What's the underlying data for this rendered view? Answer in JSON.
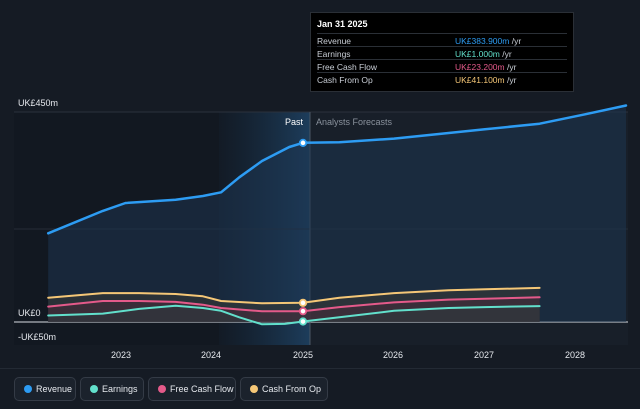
{
  "chart_data": {
    "type": "line",
    "x_ticks": [
      "2023",
      "2024",
      "2025",
      "2026",
      "2027",
      "2028"
    ],
    "y_ticks": [
      "UK£450m",
      "UK£0",
      "-UK£50m"
    ],
    "ylim": [
      -50,
      450
    ],
    "divider_labels": {
      "past": "Past",
      "forecast": "Analysts Forecasts"
    },
    "series": [
      {
        "name": "Revenue",
        "color": "#2d9cf3",
        "points": [
          [
            2022.2,
            190
          ],
          [
            2022.8,
            238
          ],
          [
            2023.05,
            255
          ],
          [
            2023.6,
            262
          ],
          [
            2023.9,
            270
          ],
          [
            2024.1,
            278
          ],
          [
            2024.3,
            310
          ],
          [
            2024.55,
            345
          ],
          [
            2024.85,
            375
          ],
          [
            2025.0,
            383.9
          ],
          [
            2025.4,
            385
          ],
          [
            2026.0,
            393
          ],
          [
            2026.6,
            405
          ],
          [
            2027.0,
            413
          ],
          [
            2027.6,
            425
          ],
          [
            2028.1,
            445
          ],
          [
            2028.55,
            464
          ]
        ]
      },
      {
        "name": "Earnings",
        "color": "#62e0cc",
        "points": [
          [
            2022.2,
            14
          ],
          [
            2022.8,
            18
          ],
          [
            2023.2,
            28
          ],
          [
            2023.6,
            35
          ],
          [
            2023.9,
            30
          ],
          [
            2024.1,
            24
          ],
          [
            2024.3,
            10
          ],
          [
            2024.55,
            -5
          ],
          [
            2024.8,
            -4
          ],
          [
            2025.0,
            1
          ],
          [
            2025.4,
            10
          ],
          [
            2026.0,
            24
          ],
          [
            2026.6,
            30
          ],
          [
            2027.0,
            32
          ],
          [
            2027.6,
            34
          ]
        ]
      },
      {
        "name": "Free Cash Flow",
        "color": "#e45a8a",
        "points": [
          [
            2022.2,
            33
          ],
          [
            2022.8,
            45
          ],
          [
            2023.2,
            45
          ],
          [
            2023.6,
            43
          ],
          [
            2023.9,
            37
          ],
          [
            2024.1,
            30
          ],
          [
            2024.55,
            23
          ],
          [
            2025.0,
            23.2
          ],
          [
            2025.4,
            32
          ],
          [
            2026.0,
            42
          ],
          [
            2026.6,
            48
          ],
          [
            2027.0,
            50
          ],
          [
            2027.6,
            53
          ]
        ]
      },
      {
        "name": "Cash From Op",
        "color": "#f5c777",
        "points": [
          [
            2022.2,
            52
          ],
          [
            2022.8,
            62
          ],
          [
            2023.2,
            62
          ],
          [
            2023.6,
            60
          ],
          [
            2023.9,
            55
          ],
          [
            2024.1,
            45
          ],
          [
            2024.55,
            40
          ],
          [
            2025.0,
            41.1
          ],
          [
            2025.4,
            52
          ],
          [
            2026.0,
            62
          ],
          [
            2026.6,
            68
          ],
          [
            2027.0,
            70
          ],
          [
            2027.6,
            73
          ]
        ]
      }
    ]
  },
  "tooltip": {
    "date": "Jan 31 2025",
    "rows": [
      {
        "label": "Revenue",
        "value": "UK£383.900m",
        "unit": " /yr",
        "color": "#2d9cf3"
      },
      {
        "label": "Earnings",
        "value": "UK£1.000m",
        "unit": " /yr",
        "color": "#62e0cc"
      },
      {
        "label": "Free Cash Flow",
        "value": "UK£23.200m",
        "unit": " /yr",
        "color": "#e45a8a"
      },
      {
        "label": "Cash From Op",
        "value": "UK£41.100m",
        "unit": " /yr",
        "color": "#f5c777"
      }
    ]
  },
  "legend": [
    {
      "label": "Revenue",
      "color": "#2d9cf3"
    },
    {
      "label": "Earnings",
      "color": "#62e0cc"
    },
    {
      "label": "Free Cash Flow",
      "color": "#e45a8a"
    },
    {
      "label": "Cash From Op",
      "color": "#f5c777"
    }
  ]
}
